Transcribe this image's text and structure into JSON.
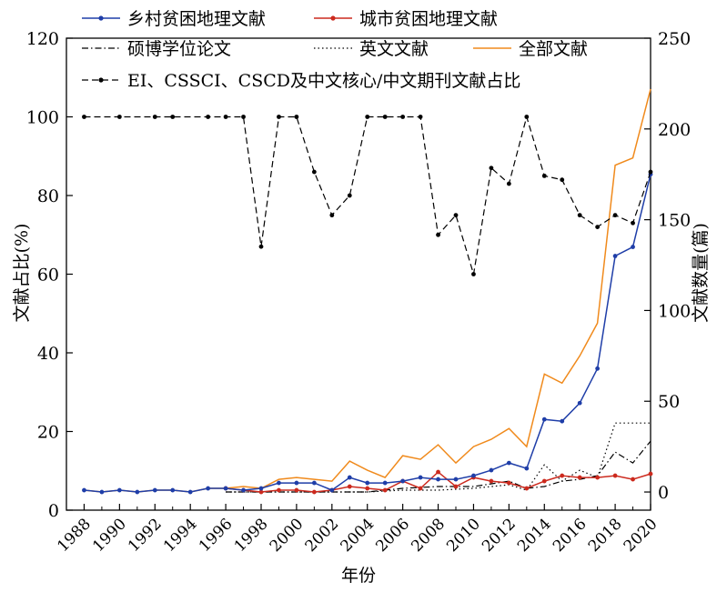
{
  "chart_data": {
    "type": "line",
    "xlabel": "年份",
    "ylabel_left": "文献占比(%)",
    "ylabel_right": "文献数量(篇)",
    "xlim": [
      1987,
      2020
    ],
    "ylim_left": [
      0,
      120
    ],
    "ylim_right": [
      -10,
      250
    ],
    "x_ticks": [
      "1988",
      "1990",
      "1992",
      "1994",
      "1996",
      "1998",
      "2000",
      "2002",
      "2004",
      "2006",
      "2008",
      "2010",
      "2012",
      "2014",
      "2016",
      "2018",
      "2020"
    ],
    "y_ticks_left": [
      "0",
      "20",
      "40",
      "60",
      "80",
      "100",
      "120"
    ],
    "y_ticks_right": [
      "0",
      "50",
      "100",
      "150",
      "200",
      "250"
    ],
    "legend_position": "top",
    "series": [
      {
        "name": "乡村贫困地理文献",
        "axis": "right",
        "color": "#1f3ea8",
        "style": "solid",
        "marker": true,
        "x": [
          1988,
          1989,
          1990,
          1991,
          1992,
          1993,
          1994,
          1995,
          1996,
          1997,
          1998,
          1999,
          2000,
          2001,
          2002,
          2003,
          2004,
          2005,
          2006,
          2007,
          2008,
          2009,
          2010,
          2011,
          2012,
          2013,
          2014,
          2015,
          2016,
          2017,
          2018,
          2019,
          2020
        ],
        "values": [
          1,
          0,
          1,
          0,
          1,
          1,
          0,
          2,
          2,
          1,
          2,
          5,
          5,
          5,
          1,
          8,
          5,
          5,
          6,
          8,
          7,
          7,
          9,
          12,
          16,
          13,
          40,
          39,
          49,
          68,
          130,
          135,
          175
        ]
      },
      {
        "name": "城市贫困地理文献",
        "axis": "right",
        "color": "#cc2a1e",
        "style": "solid",
        "marker": true,
        "x": [
          1996,
          1997,
          1998,
          1999,
          2000,
          2001,
          2002,
          2003,
          2004,
          2005,
          2006,
          2007,
          2008,
          2009,
          2010,
          2011,
          2012,
          2013,
          2014,
          2015,
          2016,
          2017,
          2018,
          2019,
          2020
        ],
        "values": [
          2,
          1,
          0,
          1,
          1,
          0,
          1,
          3,
          2,
          1,
          6,
          2,
          11,
          3,
          8,
          6,
          5,
          2,
          6,
          9,
          8,
          8,
          9,
          7,
          10
        ]
      },
      {
        "name": "硕博学位论文",
        "axis": "right",
        "color": "#000000",
        "style": "dashdot",
        "marker": false,
        "x": [
          1996,
          1998,
          2000,
          2002,
          2004,
          2006,
          2008,
          2010,
          2012,
          2013,
          2014,
          2015,
          2016,
          2017,
          2018,
          2019,
          2020
        ],
        "values": [
          0,
          0,
          0,
          0,
          0,
          2,
          3,
          3,
          6,
          2,
          3,
          6,
          7,
          9,
          22,
          16,
          28
        ]
      },
      {
        "name": "英文文献",
        "axis": "right",
        "color": "#000000",
        "style": "dotted",
        "marker": false,
        "x": [
          1996,
          1998,
          2000,
          2002,
          2004,
          2006,
          2008,
          2010,
          2012,
          2013,
          2014,
          2015,
          2016,
          2017,
          2018,
          2019,
          2020
        ],
        "values": [
          0,
          0,
          0,
          0,
          0,
          1,
          1,
          2,
          4,
          1,
          15,
          6,
          12,
          8,
          38,
          38,
          38
        ]
      },
      {
        "name": "全部文献",
        "axis": "right",
        "color": "#f08a1c",
        "style": "solid",
        "marker": false,
        "x": [
          1988,
          1989,
          1990,
          1991,
          1992,
          1993,
          1994,
          1995,
          1996,
          1997,
          1998,
          1999,
          2000,
          2001,
          2002,
          2003,
          2004,
          2005,
          2006,
          2007,
          2008,
          2009,
          2010,
          2011,
          2012,
          2013,
          2014,
          2015,
          2016,
          2017,
          2018,
          2019,
          2020
        ],
        "values": [
          1,
          0,
          1,
          0,
          1,
          1,
          0,
          2,
          2,
          3,
          2,
          7,
          8,
          7,
          6,
          17,
          12,
          8,
          20,
          18,
          26,
          16,
          25,
          29,
          35,
          25,
          65,
          60,
          75,
          93,
          180,
          184,
          222
        ]
      },
      {
        "name": "EI、CSSCI、CSCD及中文核心/中文期刊文献占比",
        "axis": "left",
        "color": "#000000",
        "style": "dashed",
        "marker": true,
        "x": [
          1988,
          1990,
          1992,
          1993,
          1995,
          1996,
          1997,
          1998,
          1999,
          2000,
          2001,
          2002,
          2003,
          2004,
          2005,
          2006,
          2007,
          2008,
          2009,
          2010,
          2011,
          2012,
          2013,
          2014,
          2015,
          2016,
          2017,
          2018,
          2019,
          2020
        ],
        "values": [
          100,
          100,
          100,
          100,
          100,
          100,
          100,
          67,
          100,
          100,
          86,
          75,
          80,
          100,
          100,
          100,
          100,
          70,
          75,
          60,
          87,
          83,
          100,
          85,
          84,
          75,
          72,
          75,
          73,
          86
        ]
      }
    ]
  }
}
